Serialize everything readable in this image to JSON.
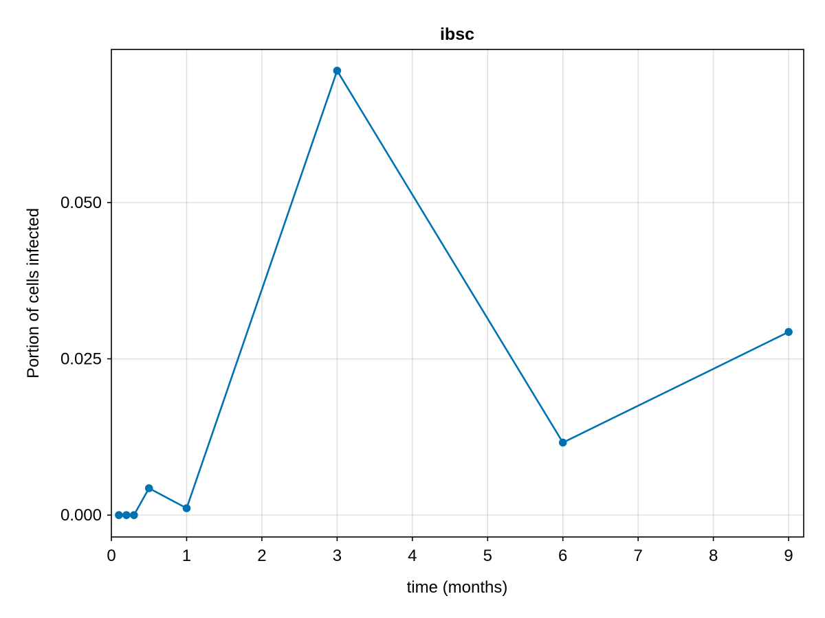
{
  "chart_data": {
    "type": "line",
    "title": "ibsc",
    "xlabel": "time (months)",
    "ylabel": "Portion of cells infected",
    "xlim": [
      0,
      9.2
    ],
    "ylim": [
      -0.0035,
      0.0745
    ],
    "xticks": [
      0,
      1,
      2,
      3,
      4,
      5,
      6,
      7,
      8,
      9
    ],
    "xtick_labels": [
      "0",
      "1",
      "2",
      "3",
      "4",
      "5",
      "6",
      "7",
      "8",
      "9"
    ],
    "yticks": [
      0.0,
      0.025,
      0.05
    ],
    "ytick_labels": [
      "0.000",
      "0.025",
      "0.050"
    ],
    "grid": true,
    "legend": "none",
    "series": [
      {
        "color": "#0072b2",
        "marker": "circle",
        "x": [
          0.1,
          0.2,
          0.3,
          0.5,
          1,
          3,
          6,
          9
        ],
        "y": [
          0.0,
          0.0,
          0.0,
          0.0043,
          0.0011,
          0.0711,
          0.0116,
          0.0293
        ]
      }
    ]
  }
}
